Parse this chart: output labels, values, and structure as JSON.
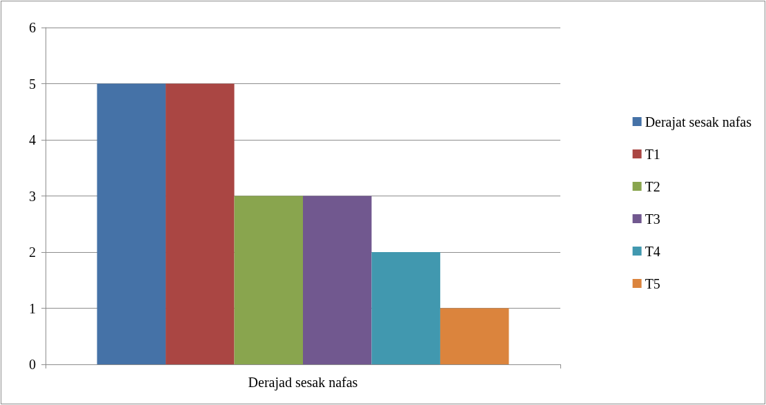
{
  "chart_data": {
    "type": "bar",
    "categories": [
      "Derajad sesak nafas"
    ],
    "series": [
      {
        "name": "Derajat sesak nafas",
        "color": "#4572a7",
        "values": [
          5
        ]
      },
      {
        "name": "T1",
        "color": "#aa4643",
        "values": [
          5
        ]
      },
      {
        "name": "T2",
        "color": "#89a54e",
        "values": [
          3
        ]
      },
      {
        "name": "T3",
        "color": "#71588f",
        "values": [
          3
        ]
      },
      {
        "name": "T4",
        "color": "#4198af",
        "values": [
          2
        ]
      },
      {
        "name": "T5",
        "color": "#db843d",
        "values": [
          1
        ]
      }
    ],
    "ylim": [
      0,
      6
    ],
    "yticks": [
      0,
      1,
      2,
      3,
      4,
      5,
      6
    ],
    "grid": "y",
    "legend": "right"
  }
}
